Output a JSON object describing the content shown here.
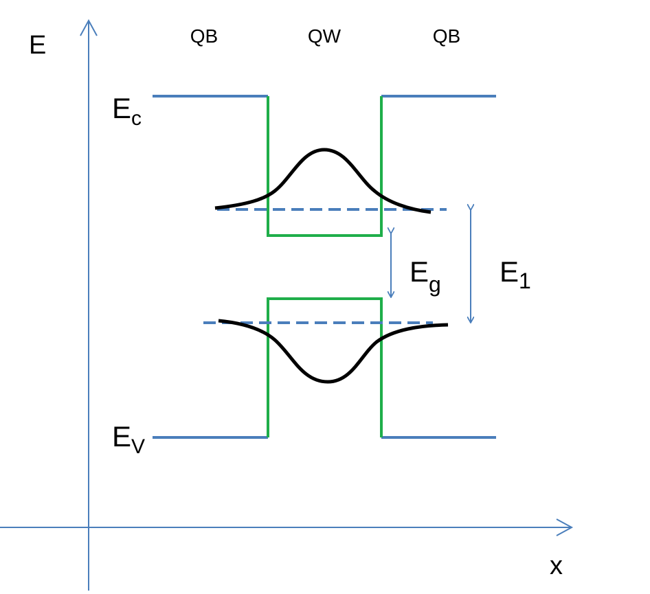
{
  "colors": {
    "axis": "#4a7ebb",
    "band_edge": "#4a7ebb",
    "well_edge": "#1fae4a",
    "wavefunction": "#000000",
    "energy_level": "#4a7ebb",
    "arrow": "#4a7ebb"
  },
  "axes": {
    "y_label": "E",
    "x_label": "x"
  },
  "regions": {
    "left_barrier": "QB",
    "well": "QW",
    "right_barrier": "QB"
  },
  "band_labels": {
    "conduction_main": "E",
    "conduction_sub": "c",
    "valence_main": "E",
    "valence_sub": "V"
  },
  "gap_labels": {
    "eg_main": "E",
    "eg_sub": "g",
    "e1_main": "E",
    "e1_sub": "1"
  }
}
